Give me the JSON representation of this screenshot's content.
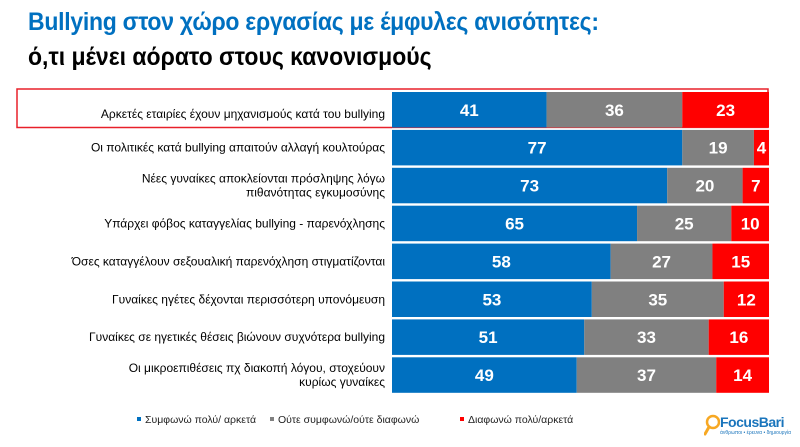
{
  "title": "Bullying στον χώρο εργασίας με έμφυλες ανισότητες:",
  "subtitle": "ό,τι μένει αόρατο στους κανονισμούς",
  "logo": {
    "name": "FocusBari",
    "tagline": "άνθρωποι • έρευνα • δημιουργία"
  },
  "chart_data": {
    "type": "bar",
    "orientation": "horizontal",
    "stacked": true,
    "unit": "%",
    "categories": [
      "Αρκετές εταιρίες έχουν μηχανισμούς κατά του bullying",
      "Οι πολιτικές κατά bullying απαιτούν αλλαγή κουλτούρας",
      "Νέες γυναίκες αποκλείονται πρόσληψης λόγω πιθανότητας εγκυμοσύνης",
      "Υπάρχει φόβος καταγγελίας bullying - παρενόχλησης",
      "Όσες καταγγέλουν σεξουαλική παρενόχληση στιγματίζονται",
      "Γυναίκες ηγέτες δέχονται περισσότερη υπονόμευση",
      "Γυναίκες σε ηγετικές θέσεις βιώνουν συχνότερα bullying",
      "Οι μικροεπιθέσεις πχ διακοπή λόγου, στοχεύουν κυρίως γυναίκες"
    ],
    "series": [
      {
        "name": "Συμφωνώ πολύ/ αρκετά",
        "color": "#0070C0",
        "values": [
          41,
          77,
          73,
          65,
          58,
          53,
          51,
          49
        ]
      },
      {
        "name": "Ούτε συμφωνώ/ούτε διαφωνώ",
        "color": "#808080",
        "values": [
          36,
          19,
          20,
          25,
          27,
          35,
          33,
          37
        ]
      },
      {
        "name": "Διαφωνώ πολύ/αρκετά",
        "color": "#FF0000",
        "values": [
          23,
          4,
          7,
          10,
          15,
          12,
          16,
          14
        ]
      }
    ],
    "highlighted_category_index": 0,
    "highlight_color": "#E8202A",
    "legend_position": "bottom",
    "xlim": [
      0,
      100
    ],
    "grid": false
  }
}
